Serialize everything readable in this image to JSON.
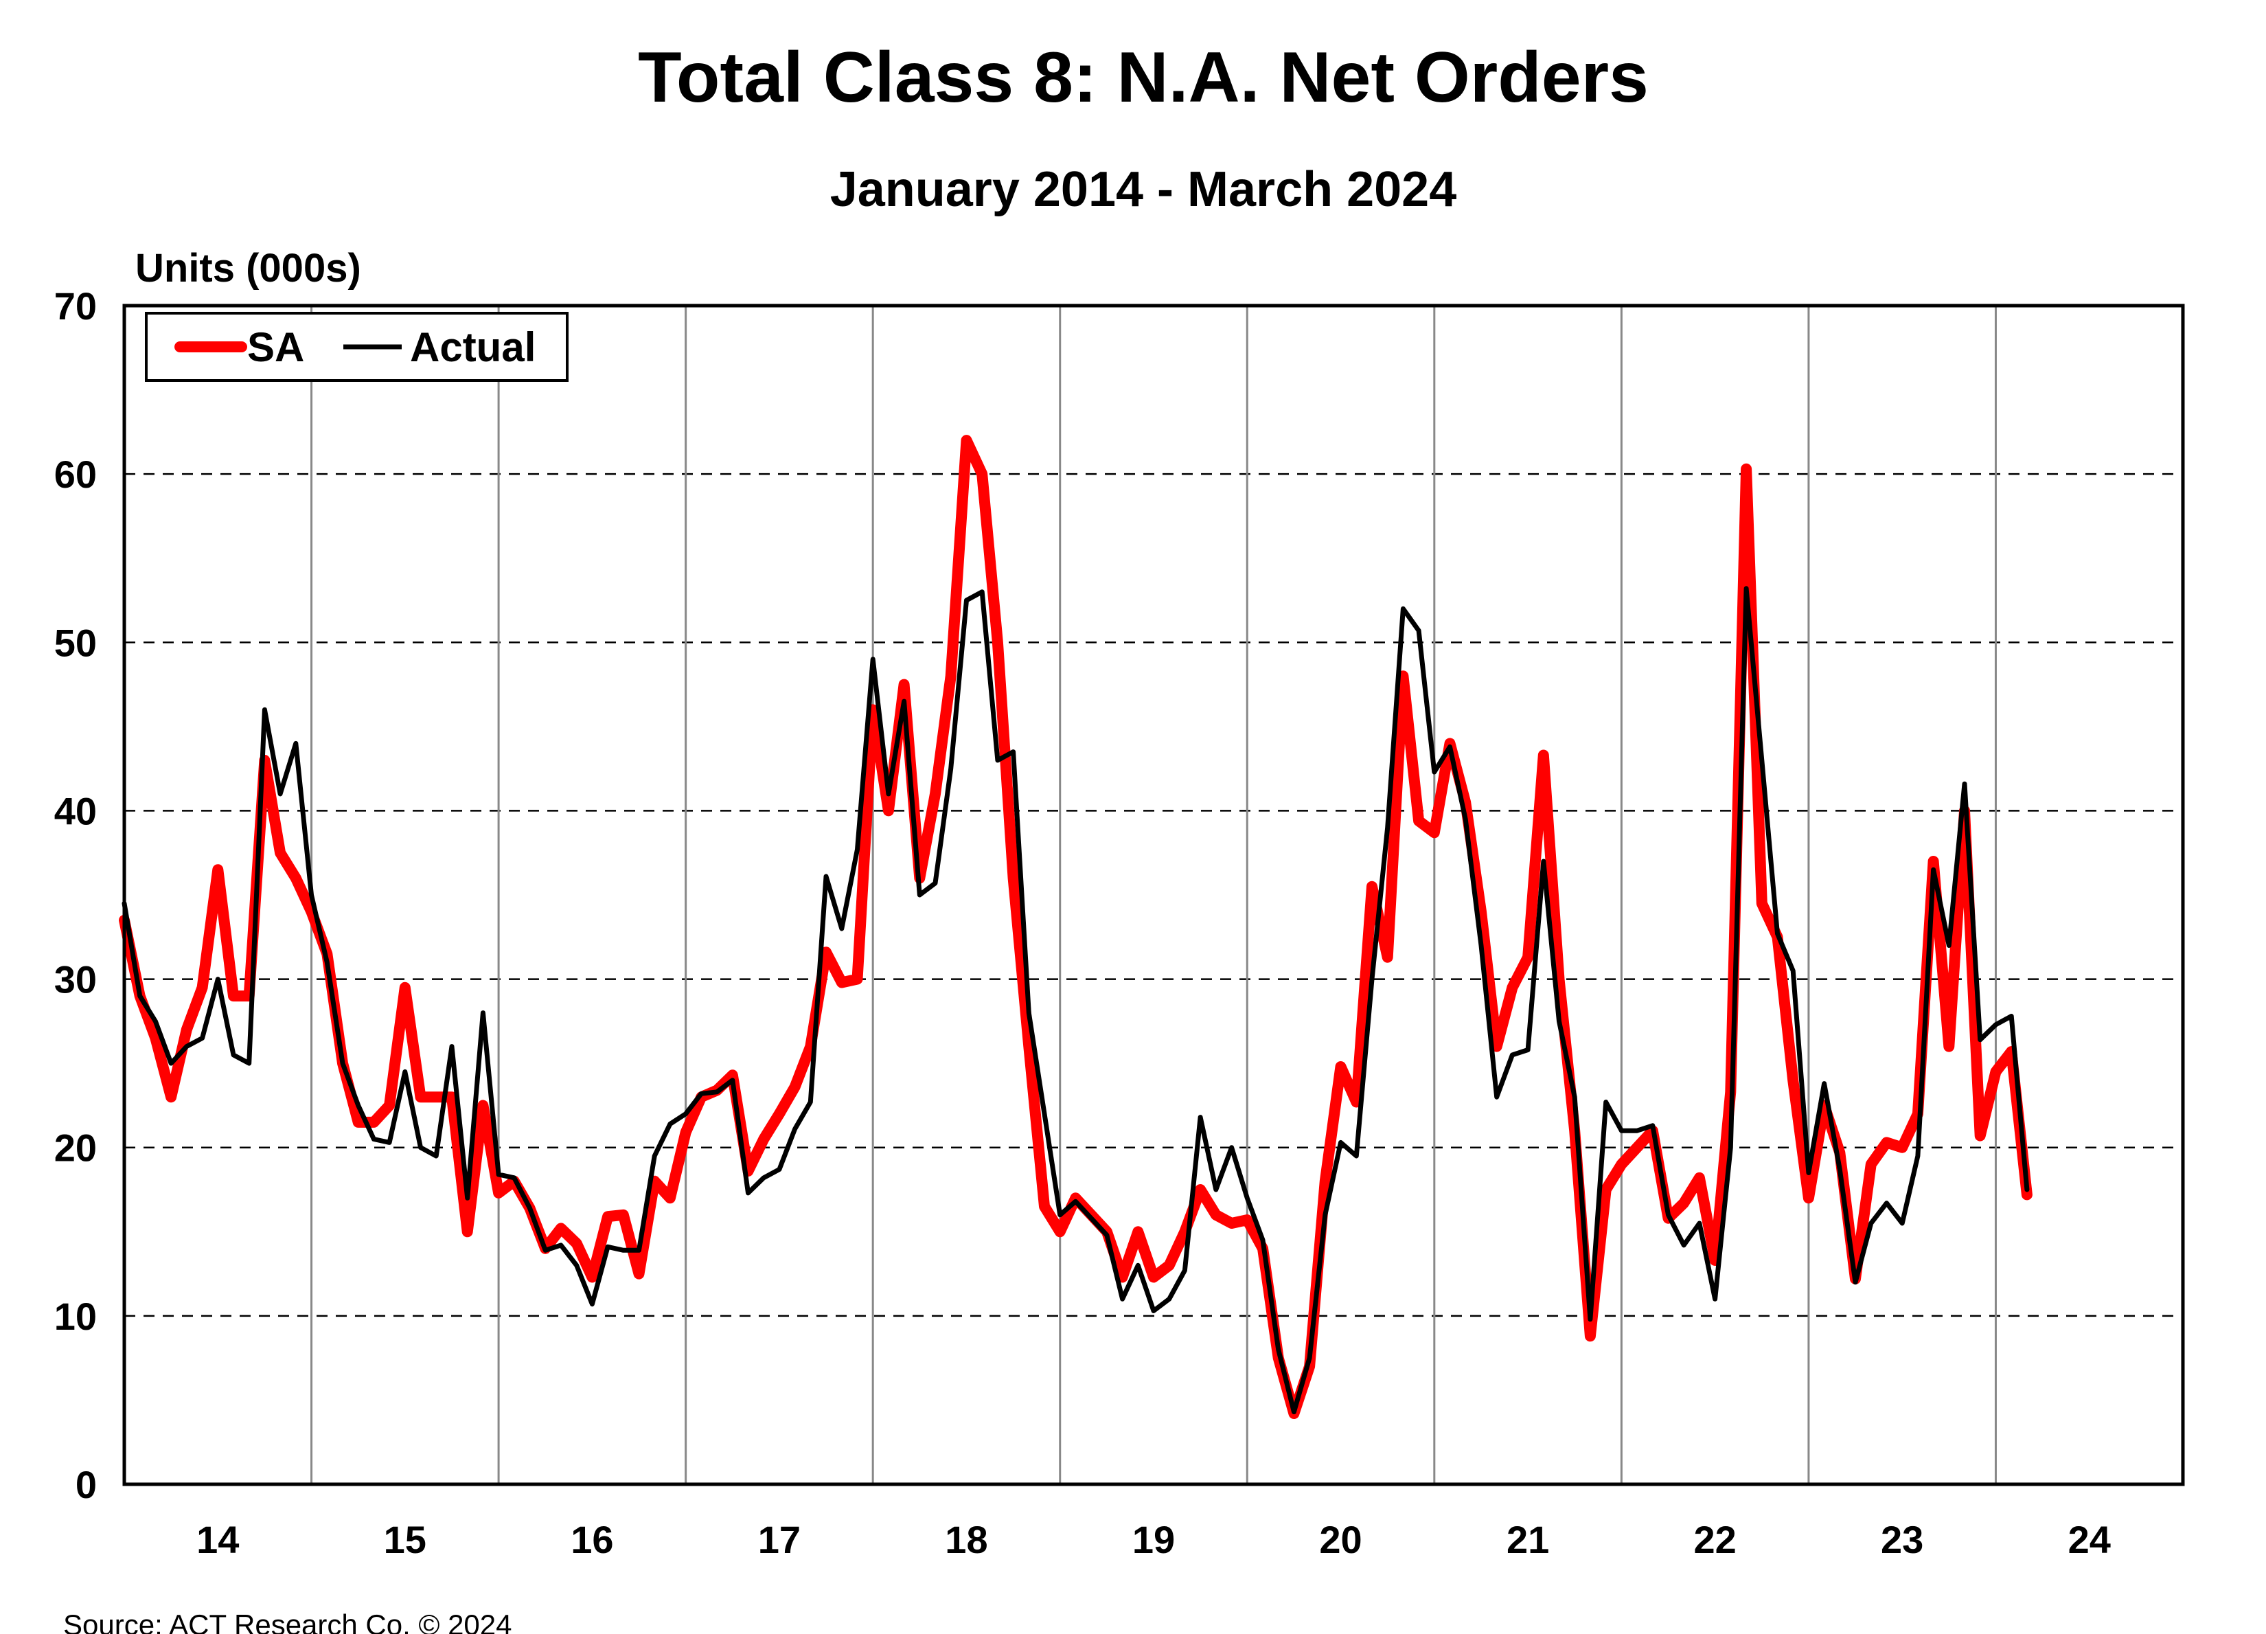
{
  "chart_data": {
    "type": "line",
    "title": "Total Class 8: N.A. Net Orders",
    "subtitle": "January 2014 - March 2024",
    "ylabel": "Units (000s)",
    "xlabel": "",
    "ylim": [
      0,
      70
    ],
    "yticks": [
      0,
      10,
      20,
      30,
      40,
      50,
      60,
      70
    ],
    "xticks": [
      "14",
      "15",
      "16",
      "17",
      "18",
      "19",
      "20",
      "21",
      "22",
      "23",
      "24"
    ],
    "x_start": "2014-01",
    "x_end": "2024-03",
    "frequency": "monthly",
    "grid": {
      "horizontal": "dashed",
      "vertical": "solid at year boundaries"
    },
    "legend_position": "top-left",
    "series": [
      {
        "name": "SA",
        "color": "#ff0000",
        "values": [
          33.5,
          29,
          26.5,
          23,
          27,
          29.5,
          36.5,
          29,
          29,
          43,
          37.5,
          36,
          34,
          31.5,
          25,
          21.5,
          21.5,
          22.5,
          29.5,
          23,
          23,
          23,
          15,
          22.5,
          17.3,
          18,
          16.4,
          14,
          15.2,
          14.3,
          12.3,
          15.9,
          16,
          12.5,
          18,
          17,
          20.9,
          23,
          23.4,
          24.3,
          18.6,
          20.5,
          22,
          23.6,
          26,
          31.6,
          29.8,
          30,
          46,
          40,
          47.5,
          36,
          41,
          48,
          62,
          60,
          50,
          36,
          26,
          16.5,
          15,
          17,
          16,
          15,
          12.3,
          15,
          12.3,
          13,
          15,
          17.5,
          16,
          15.5,
          15.7,
          14,
          7.5,
          4.2,
          7,
          18,
          24.8,
          22.7,
          35.5,
          31.3,
          48,
          39.4,
          38.7,
          44,
          40.5,
          34,
          26,
          29.5,
          31.3,
          43.3,
          30,
          21,
          8.8,
          17.5,
          19,
          20,
          21,
          15.8,
          16.7,
          18.2,
          13.3,
          23.3,
          60.3,
          34.5,
          32.5,
          24,
          17,
          22.5,
          19.7,
          12.2,
          19,
          20.3,
          20,
          22,
          37,
          26,
          40,
          20.7,
          24.5,
          25.7,
          17.2
        ]
      },
      {
        "name": "Actual",
        "color": "#000000",
        "values": [
          34.5,
          29,
          27.5,
          25,
          26,
          26.5,
          30,
          25.5,
          25,
          46,
          41,
          44,
          35,
          31,
          25,
          22.5,
          20.5,
          20.3,
          24.5,
          20,
          19.5,
          26,
          17,
          28,
          18.4,
          18.2,
          16.4,
          13.9,
          14.2,
          13,
          10.7,
          14.1,
          13.9,
          13.9,
          19.5,
          21.4,
          22,
          23.2,
          23.3,
          24,
          17.3,
          18.2,
          18.7,
          21.1,
          22.7,
          36.1,
          33,
          37.7,
          49,
          41,
          46.5,
          35,
          35.7,
          42.5,
          52.5,
          53,
          43,
          43.5,
          28,
          22,
          16,
          16.8,
          15.8,
          14.8,
          11,
          13,
          10.3,
          11,
          12.7,
          21.8,
          17.5,
          20,
          17,
          14.5,
          8,
          4.3,
          7.5,
          16,
          20.3,
          19.5,
          30,
          39,
          52,
          50.7,
          42.3,
          43.8,
          39.5,
          32,
          23,
          25.5,
          25.8,
          37,
          27.5,
          23,
          9.8,
          22.7,
          21,
          21,
          21.3,
          16,
          14.2,
          15.5,
          11,
          20,
          53.2,
          43,
          32.7,
          30.5,
          18.5,
          23.8,
          18.7,
          12,
          15.5,
          16.7,
          15.5,
          19.5,
          36.5,
          32,
          41.6,
          26.4,
          27.3,
          27.8,
          17.5
        ]
      }
    ]
  },
  "footer": {
    "source": "Source: ACT Research Co. © 2024"
  }
}
